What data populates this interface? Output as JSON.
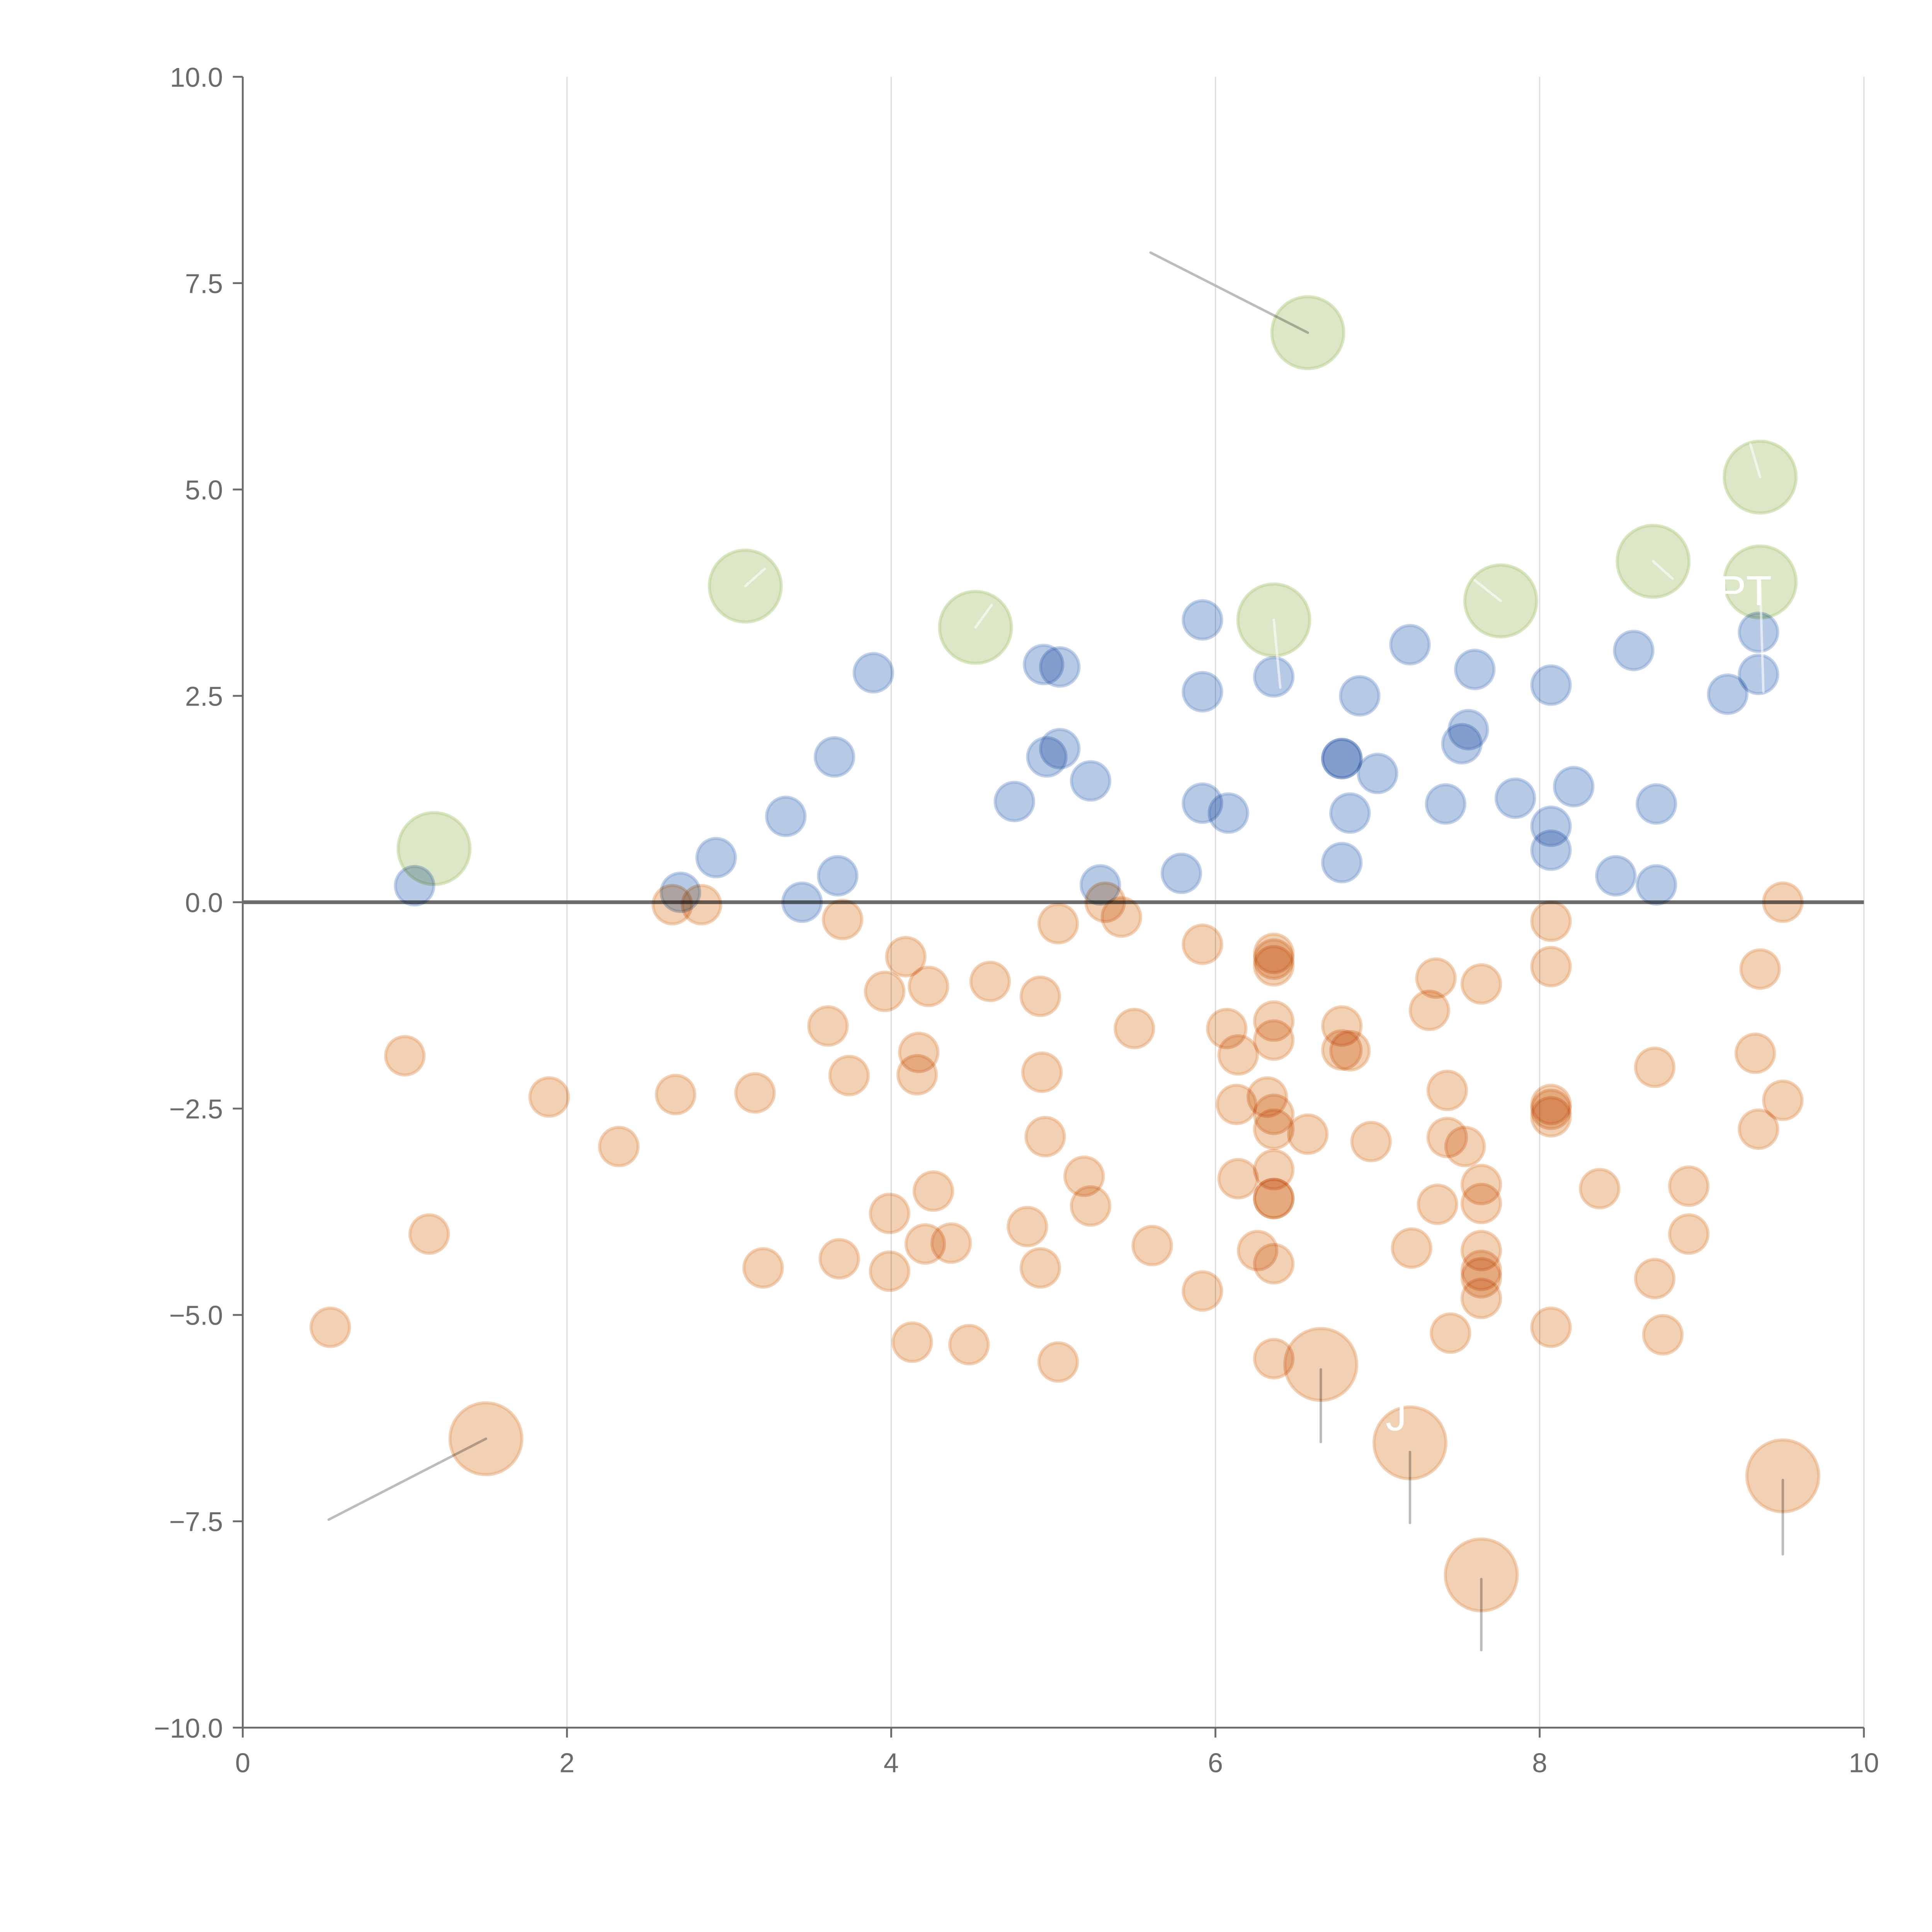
{
  "chart_data": {
    "type": "scatter",
    "title": "",
    "xlabel": "",
    "ylabel": "",
    "xlim": [
      0,
      10
    ],
    "ylim": [
      -10,
      10
    ],
    "x_ticks": [
      0,
      2,
      4,
      6,
      8,
      10
    ],
    "x_tick_labels": [
      "0",
      "2",
      "4",
      "6",
      "8",
      "10"
    ],
    "y_ticks": [
      10,
      7.5,
      5,
      2.5,
      0,
      -2.5,
      -5,
      -7.5,
      -10
    ],
    "y_tick_labels": [
      "10.0",
      "7.5",
      "5.0",
      "2.5",
      "0.0",
      "−2.5",
      "−5.0",
      "−7.5",
      "−10.0"
    ],
    "grid": "vertical",
    "zero_line": true,
    "series": [
      {
        "name": "blue",
        "color": "#8aa9d6",
        "size": "small",
        "points": [
          [
            1.06,
            0.2
          ],
          [
            2.7,
            0.12
          ],
          [
            2.92,
            0.54
          ],
          [
            3.35,
            1.04
          ],
          [
            3.45,
            0.0
          ],
          [
            3.65,
            1.76
          ],
          [
            3.67,
            0.32
          ],
          [
            3.89,
            2.78
          ],
          [
            4.76,
            1.22
          ],
          [
            4.94,
            2.88
          ],
          [
            5.04,
            2.85
          ],
          [
            4.96,
            1.76
          ],
          [
            5.04,
            1.86
          ],
          [
            5.23,
            1.47
          ],
          [
            5.29,
            0.21
          ],
          [
            5.79,
            0.35
          ],
          [
            5.92,
            3.42
          ],
          [
            5.92,
            2.55
          ],
          [
            5.92,
            1.2
          ],
          [
            6.08,
            1.08
          ],
          [
            6.36,
            2.73
          ],
          [
            6.78,
            1.74
          ],
          [
            6.78,
            1.74
          ],
          [
            6.83,
            1.08
          ],
          [
            6.78,
            0.48
          ],
          [
            6.89,
            2.5
          ],
          [
            7.0,
            1.56
          ],
          [
            7.2,
            3.12
          ],
          [
            7.42,
            1.19
          ],
          [
            7.52,
            1.92
          ],
          [
            7.56,
            2.09
          ],
          [
            7.6,
            2.82
          ],
          [
            7.85,
            1.26
          ],
          [
            8.07,
            2.63
          ],
          [
            8.07,
            0.92
          ],
          [
            8.07,
            0.63
          ],
          [
            8.21,
            1.4
          ],
          [
            8.47,
            0.32
          ],
          [
            8.58,
            3.05
          ],
          [
            8.72,
            1.19
          ],
          [
            8.72,
            0.21
          ],
          [
            9.16,
            2.52
          ],
          [
            9.35,
            3.27
          ],
          [
            9.35,
            2.76
          ]
        ]
      },
      {
        "name": "orange",
        "color": "#e8a979",
        "size": "small",
        "points": [
          [
            0.54,
            -5.15
          ],
          [
            1.0,
            -1.86
          ],
          [
            1.15,
            -4.02
          ],
          [
            1.89,
            -2.36
          ],
          [
            2.32,
            -2.96
          ],
          [
            2.65,
            -0.03
          ],
          [
            2.67,
            -2.33
          ],
          [
            2.83,
            -0.03
          ],
          [
            3.16,
            -2.31
          ],
          [
            3.21,
            -4.43
          ],
          [
            3.61,
            -1.5
          ],
          [
            3.7,
            -0.21
          ],
          [
            3.74,
            -2.1
          ],
          [
            3.68,
            -4.32
          ],
          [
            3.96,
            -1.08
          ],
          [
            4.09,
            -0.66
          ],
          [
            3.99,
            -3.77
          ],
          [
            3.99,
            -4.47
          ],
          [
            4.13,
            -5.33
          ],
          [
            4.17,
            -1.82
          ],
          [
            4.16,
            -2.09
          ],
          [
            4.23,
            -1.02
          ],
          [
            4.26,
            -3.5
          ],
          [
            4.21,
            -4.14
          ],
          [
            4.37,
            -4.13
          ],
          [
            4.48,
            -5.36
          ],
          [
            4.61,
            -0.96
          ],
          [
            4.84,
            -3.93
          ],
          [
            4.92,
            -1.14
          ],
          [
            4.93,
            -2.06
          ],
          [
            4.95,
            -2.84
          ],
          [
            4.92,
            -4.43
          ],
          [
            5.03,
            -0.26
          ],
          [
            5.03,
            -5.57
          ],
          [
            5.19,
            -3.32
          ],
          [
            5.23,
            -3.68
          ],
          [
            5.32,
            0.0
          ],
          [
            5.42,
            -0.18
          ],
          [
            5.5,
            -1.53
          ],
          [
            5.61,
            -4.16
          ],
          [
            5.92,
            -0.51
          ],
          [
            5.92,
            -4.71
          ],
          [
            6.07,
            -1.53
          ],
          [
            6.14,
            -1.85
          ],
          [
            6.13,
            -2.45
          ],
          [
            6.14,
            -3.35
          ],
          [
            6.26,
            -4.22
          ],
          [
            6.32,
            -2.36
          ],
          [
            6.36,
            -0.62
          ],
          [
            6.36,
            -0.69
          ],
          [
            6.36,
            -0.77
          ],
          [
            6.36,
            -1.44
          ],
          [
            6.36,
            -1.67
          ],
          [
            6.36,
            -2.57
          ],
          [
            6.36,
            -2.75
          ],
          [
            6.36,
            -3.24
          ],
          [
            6.36,
            -3.59
          ],
          [
            6.36,
            -3.59
          ],
          [
            6.36,
            -4.38
          ],
          [
            6.36,
            -5.53
          ],
          [
            6.57,
            -2.81
          ],
          [
            6.78,
            -1.5
          ],
          [
            6.78,
            -1.79
          ],
          [
            6.83,
            -1.8
          ],
          [
            6.96,
            -2.9
          ],
          [
            7.21,
            -4.19
          ],
          [
            7.32,
            -1.31
          ],
          [
            7.36,
            -0.92
          ],
          [
            7.37,
            -3.66
          ],
          [
            7.43,
            -2.28
          ],
          [
            7.43,
            -2.85
          ],
          [
            7.45,
            -5.22
          ],
          [
            7.54,
            -2.96
          ],
          [
            7.64,
            -0.99
          ],
          [
            7.64,
            -3.42
          ],
          [
            7.64,
            -3.65
          ],
          [
            7.64,
            -4.22
          ],
          [
            7.64,
            -4.46
          ],
          [
            7.64,
            -4.55
          ],
          [
            7.64,
            -4.8
          ],
          [
            8.07,
            -0.23
          ],
          [
            8.07,
            -0.78
          ],
          [
            8.07,
            -2.45
          ],
          [
            8.07,
            -2.51
          ],
          [
            8.07,
            -2.6
          ],
          [
            8.07,
            -5.15
          ],
          [
            8.37,
            -3.47
          ],
          [
            8.71,
            -2.0
          ],
          [
            8.71,
            -4.56
          ],
          [
            8.76,
            -5.24
          ],
          [
            8.92,
            -3.44
          ],
          [
            8.92,
            -4.02
          ],
          [
            9.33,
            -1.83
          ],
          [
            9.36,
            -0.81
          ],
          [
            9.35,
            -2.75
          ],
          [
            9.5,
            0.0
          ],
          [
            9.5,
            -2.4
          ]
        ]
      },
      {
        "name": "green-highlight",
        "color": "#b9d18f",
        "size": "large",
        "points": [
          [
            1.18,
            0.65
          ],
          [
            3.1,
            3.83
          ],
          [
            4.52,
            3.33
          ],
          [
            6.57,
            6.9
          ],
          [
            6.36,
            3.42
          ],
          [
            7.76,
            3.65
          ],
          [
            8.7,
            4.13
          ],
          [
            9.36,
            5.15
          ],
          [
            9.36,
            3.88
          ]
        ]
      },
      {
        "name": "orange-highlight",
        "color": "#e8a979",
        "size": "large",
        "points": [
          [
            1.5,
            -6.5
          ],
          [
            6.65,
            -5.6
          ],
          [
            7.2,
            -6.55
          ],
          [
            7.64,
            -8.15
          ],
          [
            9.5,
            -6.95
          ]
        ]
      }
    ],
    "connectors": [
      {
        "from": [
          6.57,
          6.9
        ],
        "to": [
          5.6,
          7.87
        ],
        "color": "#b5b5b5"
      },
      {
        "from": [
          1.5,
          -6.5
        ],
        "to": [
          0.53,
          -7.48
        ],
        "color": "#b5b5b5"
      },
      {
        "from": [
          6.65,
          -5.66
        ],
        "to": [
          6.65,
          -6.54
        ],
        "color": "#b5b5b5"
      },
      {
        "from": [
          7.2,
          -6.66
        ],
        "to": [
          7.2,
          -7.52
        ],
        "color": "#b5b5b5"
      },
      {
        "from": [
          7.64,
          -8.2
        ],
        "to": [
          7.64,
          -9.06
        ],
        "color": "#b5b5b5"
      },
      {
        "from": [
          9.5,
          -7.0
        ],
        "to": [
          9.5,
          -7.9
        ],
        "color": "#b5b5b5"
      },
      {
        "from": [
          3.1,
          3.83
        ],
        "to": [
          3.22,
          4.04
        ],
        "color": "#ffffff"
      },
      {
        "from": [
          4.52,
          3.33
        ],
        "to": [
          4.62,
          3.6
        ],
        "color": "#ffffff"
      },
      {
        "from": [
          6.36,
          3.42
        ],
        "to": [
          6.4,
          2.6
        ],
        "color": "#ffffff"
      },
      {
        "from": [
          7.76,
          3.65
        ],
        "to": [
          7.6,
          3.9
        ],
        "color": "#ffffff"
      },
      {
        "from": [
          8.7,
          4.13
        ],
        "to": [
          8.82,
          3.92
        ],
        "color": "#ffffff"
      },
      {
        "from": [
          9.36,
          5.15
        ],
        "to": [
          9.3,
          5.55
        ],
        "color": "#ffffff"
      },
      {
        "from": [
          9.36,
          3.88
        ],
        "to": [
          9.38,
          2.55
        ],
        "color": "#ffffff"
      }
    ],
    "annotations": [
      {
        "text": "PT",
        "x": 9.1,
        "y": 3.6
      },
      {
        "text": "J",
        "x": 7.05,
        "y": -6.4
      }
    ]
  }
}
